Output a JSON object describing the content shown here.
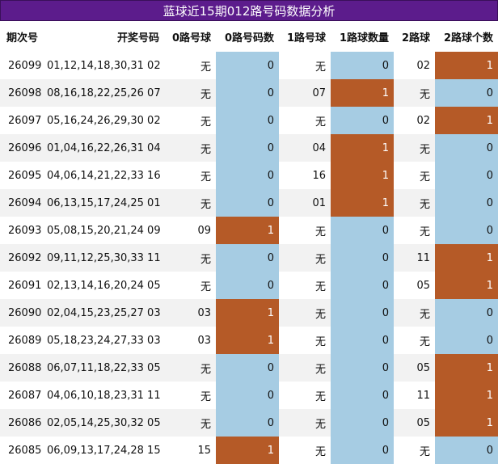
{
  "title": "蓝球近15期012路号码数据分析",
  "headers": [
    "期次号",
    "开奖号码",
    "0路号球",
    "0路号码数",
    "1路号球",
    "1路球数量",
    "2路球",
    "2路球个数"
  ],
  "rows": [
    {
      "period": "26099",
      "numbers": "01,12,14,18,30,31 02",
      "r0": "无",
      "r0c": "0",
      "r1": "无",
      "r1c": "0",
      "r2": "02",
      "r2c": "1"
    },
    {
      "period": "26098",
      "numbers": "08,16,18,22,25,26 07",
      "r0": "无",
      "r0c": "0",
      "r1": "07",
      "r1c": "1",
      "r2": "无",
      "r2c": "0"
    },
    {
      "period": "26097",
      "numbers": "05,16,24,26,29,30 02",
      "r0": "无",
      "r0c": "0",
      "r1": "无",
      "r1c": "0",
      "r2": "02",
      "r2c": "1"
    },
    {
      "period": "26096",
      "numbers": "01,04,16,22,26,31 04",
      "r0": "无",
      "r0c": "0",
      "r1": "04",
      "r1c": "1",
      "r2": "无",
      "r2c": "0"
    },
    {
      "period": "26095",
      "numbers": "04,06,14,21,22,33 16",
      "r0": "无",
      "r0c": "0",
      "r1": "16",
      "r1c": "1",
      "r2": "无",
      "r2c": "0"
    },
    {
      "period": "26094",
      "numbers": "06,13,15,17,24,25 01",
      "r0": "无",
      "r0c": "0",
      "r1": "01",
      "r1c": "1",
      "r2": "无",
      "r2c": "0"
    },
    {
      "period": "26093",
      "numbers": "05,08,15,20,21,24 09",
      "r0": "09",
      "r0c": "1",
      "r1": "无",
      "r1c": "0",
      "r2": "无",
      "r2c": "0"
    },
    {
      "period": "26092",
      "numbers": "09,11,12,25,30,33 11",
      "r0": "无",
      "r0c": "0",
      "r1": "无",
      "r1c": "0",
      "r2": "11",
      "r2c": "1"
    },
    {
      "period": "26091",
      "numbers": "02,13,14,16,20,24 05",
      "r0": "无",
      "r0c": "0",
      "r1": "无",
      "r1c": "0",
      "r2": "05",
      "r2c": "1"
    },
    {
      "period": "26090",
      "numbers": "02,04,15,23,25,27 03",
      "r0": "03",
      "r0c": "1",
      "r1": "无",
      "r1c": "0",
      "r2": "无",
      "r2c": "0"
    },
    {
      "period": "26089",
      "numbers": "05,18,23,24,27,33 03",
      "r0": "03",
      "r0c": "1",
      "r1": "无",
      "r1c": "0",
      "r2": "无",
      "r2c": "0"
    },
    {
      "period": "26088",
      "numbers": "06,07,11,18,22,33 05",
      "r0": "无",
      "r0c": "0",
      "r1": "无",
      "r1c": "0",
      "r2": "05",
      "r2c": "1"
    },
    {
      "period": "26087",
      "numbers": "04,06,10,18,23,31 11",
      "r0": "无",
      "r0c": "0",
      "r1": "无",
      "r1c": "0",
      "r2": "11",
      "r2c": "1"
    },
    {
      "period": "26086",
      "numbers": "02,05,14,25,30,32 05",
      "r0": "无",
      "r0c": "0",
      "r1": "无",
      "r1c": "0",
      "r2": "05",
      "r2c": "1"
    },
    {
      "period": "26085",
      "numbers": "06,09,13,17,24,28 15",
      "r0": "15",
      "r0c": "1",
      "r1": "无",
      "r1c": "0",
      "r2": "无",
      "r2c": "0"
    }
  ],
  "colors": {
    "title_bg": "#5c1c8c",
    "count_zero": "#a6cce3",
    "count_one": "#b55a27",
    "stripe": "#f2f2f2"
  }
}
